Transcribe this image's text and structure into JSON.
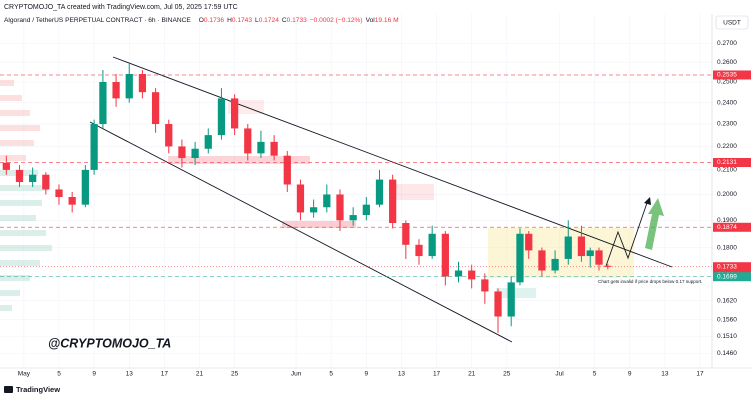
{
  "chart_data": {
    "type": "candlestick",
    "attribution": "CRYPTOMOJO_TA created with TradingView.com, Jul 05, 2025 17:59 UTC",
    "symbol": "Algorand / TetherUS PERPETUAL CONTRACT · 6h · BINANCE",
    "ohlc_labels": [
      {
        "label": "O",
        "value": "0.1736"
      },
      {
        "label": "H",
        "value": "0.1743"
      },
      {
        "label": "L",
        "value": "0.1724"
      },
      {
        "label": "C",
        "value": "0.1733"
      }
    ],
    "change": "−0.0002 (−0.12%)",
    "volume_label": "Vol",
    "volume": "19.16 M",
    "currency": "USDT",
    "watermark": "@CRYPTOMOJO_TA",
    "annotation": "Chart gets invalid if price drops below 0.17 support.",
    "footer": "TradingView",
    "log": true,
    "grid": true,
    "up_color": "#089981",
    "down_color": "#f23645",
    "ylim": [
      0.1426,
      0.2816
    ],
    "yticks": [
      {
        "value": 0.27,
        "label": "0.2700"
      },
      {
        "value": 0.26,
        "label": "0.2600"
      },
      {
        "value": 0.25,
        "label": "0.2500"
      },
      {
        "value": 0.24,
        "label": "0.2400"
      },
      {
        "value": 0.23,
        "label": "0.2300"
      },
      {
        "value": 0.22,
        "label": "0.2200"
      },
      {
        "value": 0.21,
        "label": "0.2100"
      },
      {
        "value": 0.2,
        "label": "0.2000"
      },
      {
        "value": 0.19,
        "label": "0.1900"
      },
      {
        "value": 0.18,
        "label": "0.1800"
      },
      {
        "value": 0.17,
        "label": "0.1700"
      },
      {
        "value": 0.162,
        "label": "0.1620"
      },
      {
        "value": 0.156,
        "label": "0.1560"
      },
      {
        "value": 0.151,
        "label": "0.1510"
      },
      {
        "value": 0.146,
        "label": "0.1460"
      }
    ],
    "xlim": [
      -2.72,
      78.37
    ],
    "xticks": [
      {
        "value": 0,
        "label": "May"
      },
      {
        "value": 4,
        "label": "5"
      },
      {
        "value": 8,
        "label": "9"
      },
      {
        "value": 12,
        "label": "13"
      },
      {
        "value": 16,
        "label": "17"
      },
      {
        "value": 20,
        "label": "21"
      },
      {
        "value": 24,
        "label": "25"
      },
      {
        "value": 31,
        "label": "Jun"
      },
      {
        "value": 35,
        "label": "5"
      },
      {
        "value": 39,
        "label": "9"
      },
      {
        "value": 43,
        "label": "13"
      },
      {
        "value": 47,
        "label": "17"
      },
      {
        "value": 51,
        "label": "21"
      },
      {
        "value": 55,
        "label": "25"
      },
      {
        "value": 61,
        "label": "Jul"
      },
      {
        "value": 65,
        "label": "5"
      },
      {
        "value": 69,
        "label": "9"
      },
      {
        "value": 73,
        "label": "13"
      },
      {
        "value": 77,
        "label": "17"
      }
    ],
    "x": [
      -2,
      -0.5,
      1,
      2.5,
      4,
      5.5,
      7,
      8,
      9,
      10.5,
      12,
      13.5,
      15,
      16.5,
      18,
      19.5,
      21,
      22.5,
      24,
      25.5,
      27,
      28.5,
      30,
      31.5,
      33,
      34.5,
      36,
      37.5,
      39,
      40.5,
      42,
      43.5,
      45,
      46.5,
      48,
      49.5,
      51,
      52.5,
      54,
      55.5,
      56.5,
      57.5,
      59,
      60.5,
      62,
      63.5,
      64.5,
      65.5,
      66.5
    ],
    "open": [
      0.213,
      0.21,
      0.205,
      0.208,
      0.202,
      0.199,
      0.196,
      0.21,
      0.23,
      0.25,
      0.242,
      0.254,
      0.245,
      0.23,
      0.22,
      0.215,
      0.219,
      0.225,
      0.242,
      0.228,
      0.217,
      0.222,
      0.216,
      0.204,
      0.193,
      0.195,
      0.2,
      0.19,
      0.192,
      0.196,
      0.206,
      0.189,
      0.181,
      0.177,
      0.185,
      0.17,
      0.172,
      0.169,
      0.165,
      0.157,
      0.168,
      0.185,
      0.179,
      0.172,
      0.176,
      0.184,
      0.177,
      0.179,
      0.1736
    ],
    "high": [
      0.216,
      0.212,
      0.211,
      0.209,
      0.204,
      0.201,
      0.212,
      0.232,
      0.256,
      0.254,
      0.26,
      0.256,
      0.247,
      0.232,
      0.223,
      0.222,
      0.228,
      0.247,
      0.244,
      0.23,
      0.227,
      0.225,
      0.218,
      0.206,
      0.198,
      0.204,
      0.202,
      0.195,
      0.199,
      0.21,
      0.208,
      0.19,
      0.183,
      0.188,
      0.186,
      0.175,
      0.174,
      0.171,
      0.166,
      0.17,
      0.187,
      0.186,
      0.18,
      0.179,
      0.19,
      0.188,
      0.18,
      0.18,
      0.1743
    ],
    "low": [
      0.208,
      0.203,
      0.203,
      0.2,
      0.196,
      0.193,
      0.195,
      0.208,
      0.228,
      0.238,
      0.24,
      0.242,
      0.226,
      0.217,
      0.211,
      0.212,
      0.217,
      0.223,
      0.225,
      0.214,
      0.215,
      0.214,
      0.201,
      0.19,
      0.191,
      0.193,
      0.186,
      0.188,
      0.19,
      0.195,
      0.187,
      0.176,
      0.174,
      0.176,
      0.167,
      0.168,
      0.166,
      0.161,
      0.152,
      0.154,
      0.167,
      0.176,
      0.17,
      0.171,
      0.174,
      0.175,
      0.173,
      0.172,
      0.1724
    ],
    "close": [
      0.21,
      0.205,
      0.208,
      0.202,
      0.199,
      0.196,
      0.21,
      0.23,
      0.25,
      0.242,
      0.254,
      0.245,
      0.23,
      0.22,
      0.215,
      0.219,
      0.225,
      0.242,
      0.228,
      0.217,
      0.222,
      0.216,
      0.204,
      0.193,
      0.195,
      0.2,
      0.19,
      0.192,
      0.196,
      0.206,
      0.189,
      0.181,
      0.177,
      0.185,
      0.17,
      0.172,
      0.169,
      0.165,
      0.157,
      0.168,
      0.185,
      0.179,
      0.172,
      0.176,
      0.184,
      0.177,
      0.179,
      0.174,
      0.1733
    ],
    "price_levels": [
      {
        "value": 0.2535,
        "color": "#f23645",
        "style": "dashed"
      },
      {
        "value": 0.2131,
        "color": "#f23645",
        "style": "dashed"
      },
      {
        "value": 0.1874,
        "color": "#f23645",
        "style": "dashed"
      },
      {
        "value": 0.1733,
        "color": "#f23645",
        "style": "dotted",
        "countdown": "00:24"
      },
      {
        "value": 0.1699,
        "color": "#22ab94",
        "style": "dashed"
      }
    ]
  }
}
